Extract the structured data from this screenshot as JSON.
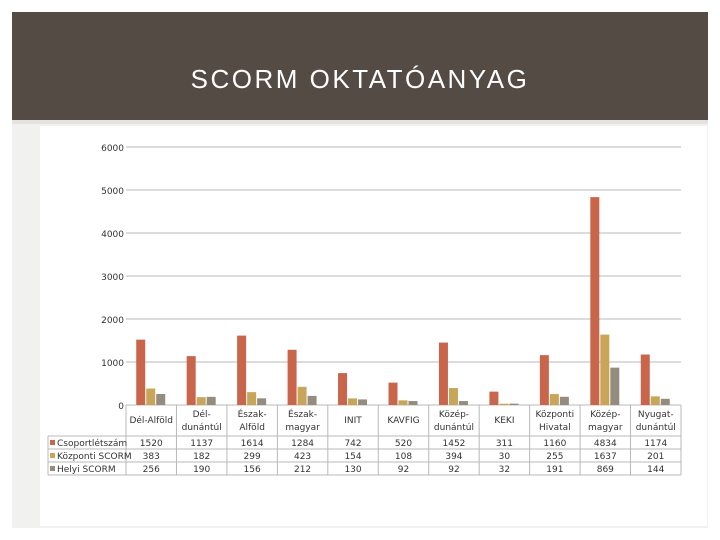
{
  "title": "SCORM OKTATÓANYAG",
  "chart_data": {
    "type": "bar",
    "ylim": [
      0,
      6000
    ],
    "yticks": [
      0,
      1000,
      2000,
      3000,
      4000,
      5000,
      6000
    ],
    "grid": true,
    "legend": "bottom-left data table",
    "categories": [
      [
        "Dél-Alföld"
      ],
      [
        "Dél-",
        "dunántúl"
      ],
      [
        "Észak-",
        "Alföld"
      ],
      [
        "Észak-",
        "magyar"
      ],
      [
        "INIT"
      ],
      [
        "KAVFIG"
      ],
      [
        "Közép-",
        "dunántúl"
      ],
      [
        "KEKI"
      ],
      [
        "Központi",
        "Hivatal"
      ],
      [
        "Közép-",
        "magyar"
      ],
      [
        "Nyugat-",
        "dunántúl"
      ]
    ],
    "series": [
      {
        "name": "Csoportlétszám",
        "color": "#c9654a",
        "values": [
          1520,
          1137,
          1614,
          1284,
          742,
          520,
          1452,
          311,
          1160,
          4834,
          1174
        ]
      },
      {
        "name": "Központi SCORM",
        "color": "#c9a55a",
        "values": [
          383,
          182,
          299,
          423,
          154,
          108,
          394,
          30,
          255,
          1637,
          201
        ]
      },
      {
        "name": "Helyi SCORM",
        "color": "#948d7f",
        "values": [
          256,
          190,
          156,
          212,
          130,
          92,
          92,
          32,
          191,
          869,
          144
        ]
      }
    ]
  }
}
